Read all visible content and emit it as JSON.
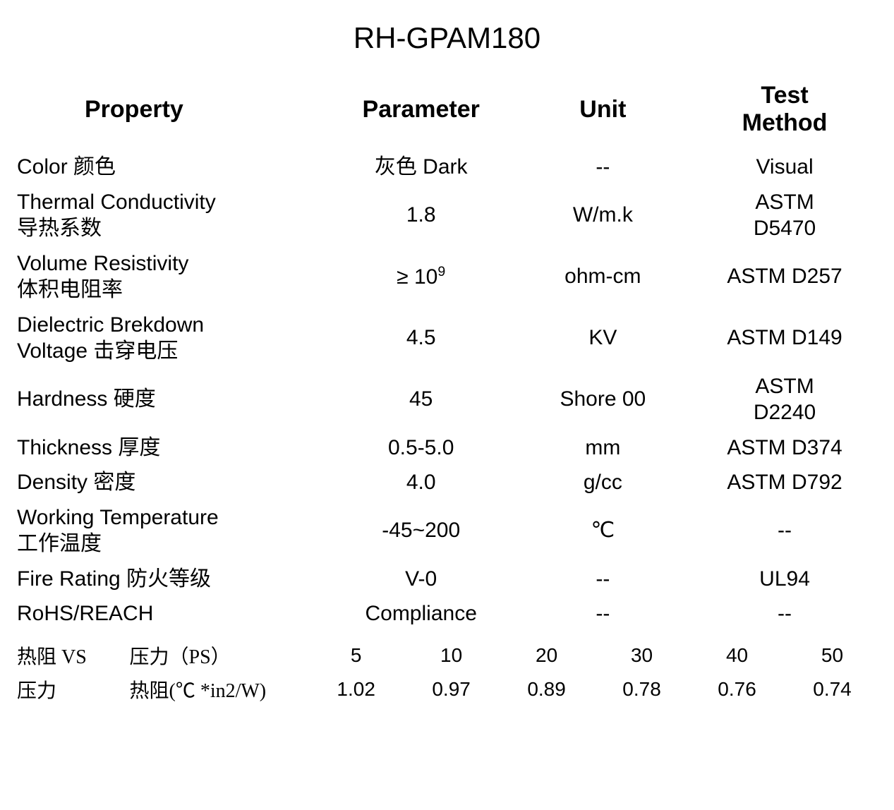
{
  "title": "RH-GPAM180",
  "headers": {
    "property": "Property",
    "parameter": "Parameter",
    "unit": "Unit",
    "test_method": "Test\nMethod"
  },
  "rows": [
    {
      "property": "Color 颜色",
      "parameter": "灰色 Dark",
      "unit": "--",
      "test": "Visual"
    },
    {
      "property": "Thermal Conductivity\n导热系数",
      "parameter": "1.8",
      "unit": "W/m.k",
      "test": "ASTM\nD5470"
    },
    {
      "property": "Volume Resistivity\n体积电阻率",
      "parameter_html": "≥ 10<span class=\"sup\">9</span>",
      "unit": "ohm-cm",
      "test": "ASTM D257"
    },
    {
      "property": "Dielectric Brekdown\nVoltage 击穿电压",
      "parameter": "4.5",
      "unit": "KV",
      "test": "ASTM D149"
    },
    {
      "property": "Hardness 硬度",
      "parameter": "45",
      "unit": "Shore 00",
      "test": "ASTM\nD2240"
    },
    {
      "property": "Thickness 厚度",
      "parameter": "0.5-5.0",
      "unit": "mm",
      "test": "ASTM D374"
    },
    {
      "property": "Density 密度",
      "parameter": "4.0",
      "unit": "g/cc",
      "test": "ASTM D792"
    },
    {
      "property": "Working Temperature\n工作温度",
      "parameter": "-45~200",
      "unit": "℃",
      "test": "--"
    },
    {
      "property": "Fire Rating  防火等级",
      "parameter": "V-0",
      "unit": "--",
      "test": "UL94"
    },
    {
      "property": "RoHS/REACH",
      "parameter": "Compliance",
      "unit": "--",
      "test": "--"
    }
  ],
  "footer": {
    "row1_label1": "热阻 VS",
    "row1_label2": "压力（PS）",
    "row1_values": [
      "5",
      "10",
      "20",
      "30",
      "40",
      "50"
    ],
    "row2_label1": "压力",
    "row2_label2": "热阻(℃ *in2/W)",
    "row2_values": [
      "1.02",
      "0.97",
      "0.89",
      "0.78",
      "0.76",
      "0.74"
    ]
  },
  "style": {
    "background_color": "#ffffff",
    "text_color": "#000000",
    "title_fontsize": 42,
    "header_fontsize": 34,
    "cell_fontsize": 30,
    "footer_fontsize": 28
  }
}
